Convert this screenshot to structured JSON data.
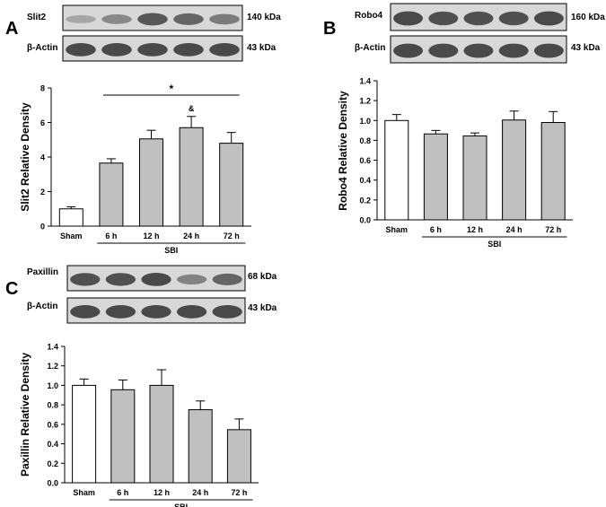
{
  "panels": [
    {
      "letter": "A",
      "blots": [
        {
          "protein": "Slit2",
          "size": "140 kDa",
          "bands": [
            0.25,
            0.45,
            0.8,
            0.7,
            0.55
          ]
        },
        {
          "protein": "β-Actin",
          "size": "43 kDa",
          "bands": [
            0.9,
            0.9,
            0.9,
            0.9,
            0.9
          ]
        }
      ]
    },
    {
      "letter": "B",
      "blots": [
        {
          "protein": "Robo4",
          "size": "160 kDa",
          "bands": [
            0.9,
            0.85,
            0.85,
            0.85,
            0.9
          ]
        },
        {
          "protein": "β-Actin",
          "size": "43 kDa",
          "bands": [
            0.9,
            0.9,
            0.9,
            0.9,
            0.9
          ]
        }
      ]
    },
    {
      "letter": "C",
      "blots": [
        {
          "protein": "Paxillin",
          "size": "68 kDa",
          "bands": [
            0.85,
            0.85,
            0.9,
            0.5,
            0.7
          ]
        },
        {
          "protein": "β-Actin",
          "size": "43 kDa",
          "bands": [
            0.9,
            0.9,
            0.9,
            0.9,
            0.9
          ]
        }
      ]
    }
  ],
  "chart_data": [
    {
      "type": "bar",
      "categories": [
        "Sham",
        "6 h",
        "12 h",
        "24 h",
        "72 h"
      ],
      "values": [
        1.0,
        3.65,
        5.05,
        5.7,
        4.8
      ],
      "errors": [
        0.12,
        0.25,
        0.5,
        0.65,
        0.62
      ],
      "ylabel": "Slit2 Relative Density",
      "ylim": [
        0,
        8
      ],
      "yticks": [
        "0",
        "2",
        "4",
        "6",
        "8"
      ],
      "group_label": "SBI",
      "annotations": [
        {
          "text": "*",
          "over": "6 h – 72 h"
        },
        {
          "text": "&",
          "over": "24 h"
        }
      ],
      "bar_colors": [
        "#ffffff",
        "#c0c0c0",
        "#c0c0c0",
        "#c0c0c0",
        "#c0c0c0"
      ]
    },
    {
      "type": "bar",
      "categories": [
        "Sham",
        "6 h",
        "12 h",
        "24 h",
        "72 h"
      ],
      "values": [
        1.0,
        0.865,
        0.845,
        1.005,
        0.98
      ],
      "errors": [
        0.06,
        0.035,
        0.03,
        0.09,
        0.11
      ],
      "ylabel": "Robo4 Relative Density",
      "ylim": [
        0,
        1.4
      ],
      "yticks": [
        "0.0",
        "0.2",
        "0.4",
        "0.6",
        "0.8",
        "1.0",
        "1.2",
        "1.4"
      ],
      "group_label": "SBI",
      "bar_colors": [
        "#ffffff",
        "#c0c0c0",
        "#c0c0c0",
        "#c0c0c0",
        "#c0c0c0"
      ]
    },
    {
      "type": "bar",
      "categories": [
        "Sham",
        "6 h",
        "12 h",
        "24 h",
        "72 h"
      ],
      "values": [
        1.0,
        0.955,
        1.0,
        0.75,
        0.545
      ],
      "errors": [
        0.065,
        0.1,
        0.16,
        0.09,
        0.11
      ],
      "ylabel": "Paxillin Relative Density",
      "ylim": [
        0,
        1.4
      ],
      "yticks": [
        "0.0",
        "0.2",
        "0.4",
        "0.6",
        "0.8",
        "1.0",
        "1.2",
        "1.4"
      ],
      "group_label": "SBI",
      "bar_colors": [
        "#ffffff",
        "#c0c0c0",
        "#c0c0c0",
        "#c0c0c0",
        "#c0c0c0"
      ]
    }
  ]
}
